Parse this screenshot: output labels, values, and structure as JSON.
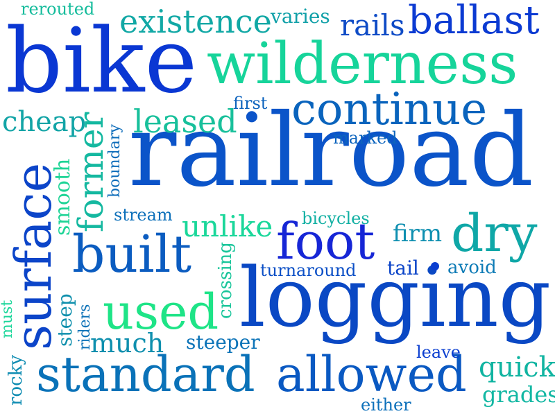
{
  "words": [
    {
      "id": "railroad",
      "text": "railroad",
      "color": "#0b54c9"
    },
    {
      "id": "logging",
      "text": "logging",
      "color": "#0a48c4"
    },
    {
      "id": "bike",
      "text": "bike",
      "color": "#0a37d3"
    },
    {
      "id": "wilderness",
      "text": "wilderness",
      "color": "#16d49a"
    },
    {
      "id": "surface",
      "text": "surface",
      "color": "#0c45c9"
    },
    {
      "id": "standard",
      "text": "standard",
      "color": "#0a72b8"
    },
    {
      "id": "allowed",
      "text": "allowed",
      "color": "#0a59c2"
    },
    {
      "id": "continue",
      "text": "continue",
      "color": "#0a64bd"
    },
    {
      "id": "built",
      "text": "built",
      "color": "#0b5cc0"
    },
    {
      "id": "foot",
      "text": "foot",
      "color": "#1626d6"
    },
    {
      "id": "used",
      "text": "used",
      "color": "#1ee487"
    },
    {
      "id": "dry",
      "text": "dry",
      "color": "#0fa7a7"
    },
    {
      "id": "ballast",
      "text": "ballast",
      "color": "#0b3ad2"
    },
    {
      "id": "existence",
      "text": "existence",
      "color": "#11a8a5"
    },
    {
      "id": "leased",
      "text": "leased",
      "color": "#18c09b"
    },
    {
      "id": "unlike",
      "text": "unlike",
      "color": "#1ad79a"
    },
    {
      "id": "former",
      "text": "former",
      "color": "#14b8a0"
    },
    {
      "id": "rails",
      "text": "rails",
      "color": "#0e4bc6"
    },
    {
      "id": "cheap",
      "text": "cheap",
      "color": "#12a4a6"
    },
    {
      "id": "much",
      "text": "much",
      "color": "#0e8fae"
    },
    {
      "id": "quick",
      "text": "quick",
      "color": "#10b4a1"
    },
    {
      "id": "smooth",
      "text": "smooth",
      "color": "#1ed496"
    },
    {
      "id": "firm",
      "text": "firm",
      "color": "#0e8fb0"
    },
    {
      "id": "steeper",
      "text": "steeper",
      "color": "#0d74b8"
    },
    {
      "id": "grades",
      "text": "grades",
      "color": "#12b7a3"
    },
    {
      "id": "rocky",
      "text": "rocky",
      "color": "#0e8cb2"
    },
    {
      "id": "steep",
      "text": "steep",
      "color": "#1090ad"
    },
    {
      "id": "crossing",
      "text": "crossing",
      "color": "#19c59a"
    },
    {
      "id": "turnaround",
      "text": "turnaround",
      "color": "#0b4fc6"
    },
    {
      "id": "bicycles",
      "text": "bicycles",
      "color": "#12b0a3"
    },
    {
      "id": "stream",
      "text": "stream",
      "color": "#0d70ba"
    },
    {
      "id": "tail",
      "text": "tail",
      "color": "#0b44c8"
    },
    {
      "id": "avoid",
      "text": "avoid",
      "color": "#0d7bb6"
    },
    {
      "id": "varies",
      "text": "varies",
      "color": "#10a0a8"
    },
    {
      "id": "rerouted",
      "text": "rerouted",
      "color": "#15bc9c"
    },
    {
      "id": "first",
      "text": "first",
      "color": "#0d63bd"
    },
    {
      "id": "marked",
      "text": "marked",
      "color": "#0d64bd"
    },
    {
      "id": "boundary",
      "text": "boundary",
      "color": "#0d6cba"
    },
    {
      "id": "riders",
      "text": "riders",
      "color": "#0e73b8"
    },
    {
      "id": "must",
      "text": "must",
      "color": "#1bd69a"
    },
    {
      "id": "leave",
      "text": "leave",
      "color": "#0a3ed0"
    },
    {
      "id": "either",
      "text": "either",
      "color": "#0d70ba"
    }
  ]
}
